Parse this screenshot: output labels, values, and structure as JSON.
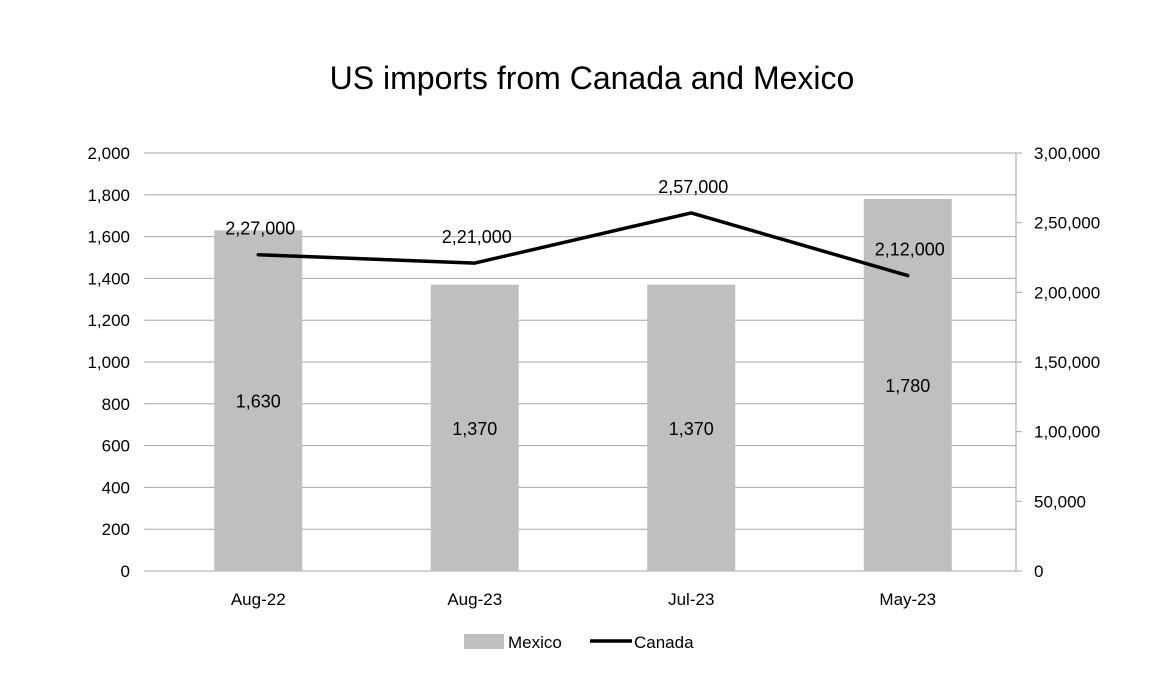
{
  "chart_data": {
    "type": "bar+line",
    "title": "US imports from Canada and Mexico",
    "categories": [
      "Aug-22",
      "Aug-23",
      "Jul-23",
      "May-23"
    ],
    "series": [
      {
        "name": "Mexico",
        "type": "bar",
        "axis": "left",
        "values": [
          1630,
          1370,
          1370,
          1780
        ],
        "value_labels": [
          "1,630",
          "1,370",
          "1,370",
          "1,780"
        ],
        "color": "#bfbfbf"
      },
      {
        "name": "Canada",
        "type": "line",
        "axis": "right",
        "values": [
          227000,
          221000,
          257000,
          212000
        ],
        "value_labels": [
          "2,27,000",
          "2,21,000",
          "2,57,000",
          "2,12,000"
        ],
        "color": "#000000"
      }
    ],
    "y_left": {
      "ylim": [
        0,
        2000
      ],
      "ticks": [
        0,
        200,
        400,
        600,
        800,
        1000,
        1200,
        1400,
        1600,
        1800,
        2000
      ],
      "tick_labels": [
        "0",
        "200",
        "400",
        "600",
        "800",
        "1,000",
        "1,200",
        "1,400",
        "1,600",
        "1,800",
        "2,000"
      ]
    },
    "y_right": {
      "ylim": [
        0,
        300000
      ],
      "ticks": [
        0,
        50000,
        100000,
        150000,
        200000,
        250000,
        300000
      ],
      "tick_labels": [
        "0",
        "50,000",
        "1,00,000",
        "1,50,000",
        "2,00,000",
        "2,50,000",
        "3,00,000"
      ]
    },
    "grid": true,
    "legend_position": "bottom",
    "gridline_color": "#a6a6a6"
  }
}
